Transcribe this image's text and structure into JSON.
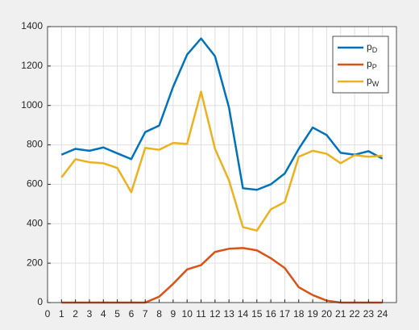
{
  "chart_data": {
    "type": "line",
    "x": [
      1,
      2,
      3,
      4,
      5,
      6,
      7,
      8,
      9,
      10,
      11,
      12,
      13,
      14,
      15,
      16,
      17,
      18,
      19,
      20,
      21,
      22,
      23,
      24
    ],
    "series": [
      {
        "name": "p",
        "subscript": "D",
        "color": "#0072bd",
        "values": [
          750,
          780,
          770,
          787,
          757,
          728,
          865,
          898,
          1095,
          1258,
          1340,
          1250,
          990,
          580,
          572,
          600,
          655,
          780,
          888,
          850,
          760,
          750,
          768,
          730
        ]
      },
      {
        "name": "p",
        "subscript": "P",
        "color": "#d95319",
        "values": [
          0,
          0,
          0,
          0,
          0,
          0,
          0,
          30,
          95,
          168,
          190,
          257,
          273,
          277,
          265,
          225,
          175,
          78,
          38,
          10,
          0,
          0,
          0,
          0
        ]
      },
      {
        "name": "p",
        "subscript": "W",
        "color": "#edb120",
        "values": [
          635,
          727,
          712,
          707,
          683,
          560,
          785,
          775,
          810,
          805,
          1070,
          780,
          620,
          383,
          365,
          473,
          510,
          740,
          770,
          755,
          707,
          748,
          740,
          745
        ]
      }
    ],
    "xlim": [
      0,
      25
    ],
    "xticks": [
      0,
      1,
      2,
      3,
      4,
      5,
      6,
      7,
      8,
      9,
      10,
      11,
      12,
      13,
      14,
      15,
      16,
      17,
      18,
      19,
      20,
      21,
      22,
      23,
      24
    ],
    "ylim": [
      0,
      1400
    ],
    "yticks": [
      0,
      200,
      400,
      600,
      800,
      1000,
      1200,
      1400
    ],
    "grid": true,
    "legend": "top-right"
  }
}
